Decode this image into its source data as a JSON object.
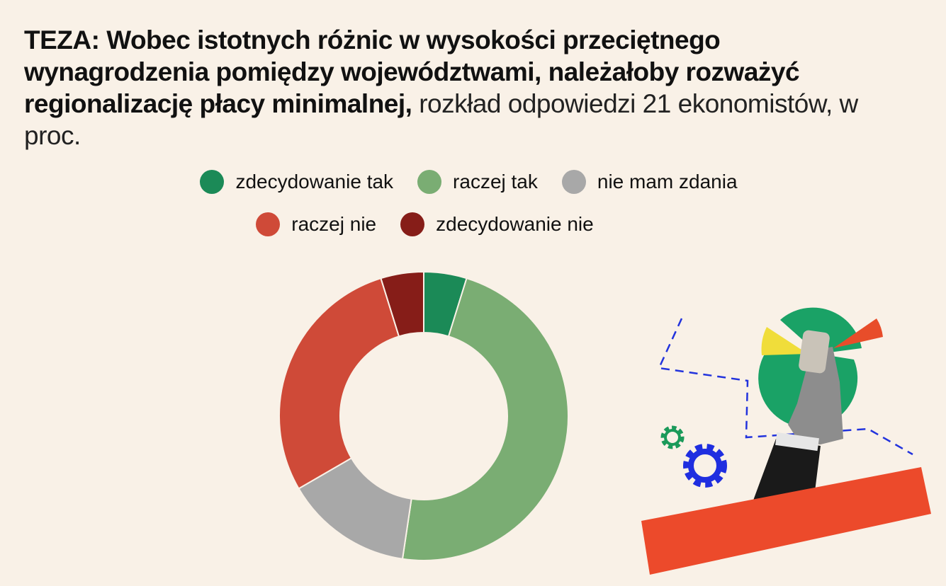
{
  "title": {
    "bold": "TEZA:  Wobec istotnych różnic w wysokości przeciętnego wynagrodzenia pomiędzy województwami, należałoby rozważyć regionalizację płacy minimalnej,",
    "rest": " rozkład odpowiedzi 21 ekonomistów, w proc."
  },
  "chart_data": {
    "type": "pie",
    "title": "TEZA:  Wobec istotnych różnic w wysokości przeciętnego wynagrodzenia pomiędzy województwami, należałoby rozważyć regionalizację płacy minimalnej, rozkład odpowiedzi 21 ekonomistów, w proc.",
    "donut": true,
    "legend_position": "top-center",
    "categories": [
      "zdecydowanie tak",
      "raczej tak",
      "nie mam zdania",
      "raczej nie",
      "zdecydowanie nie"
    ],
    "values": [
      4.8,
      47.6,
      14.3,
      28.6,
      4.8
    ],
    "colors": [
      "#1b8a57",
      "#7aad73",
      "#a8a8a8",
      "#cf4a38",
      "#861d18"
    ]
  }
}
